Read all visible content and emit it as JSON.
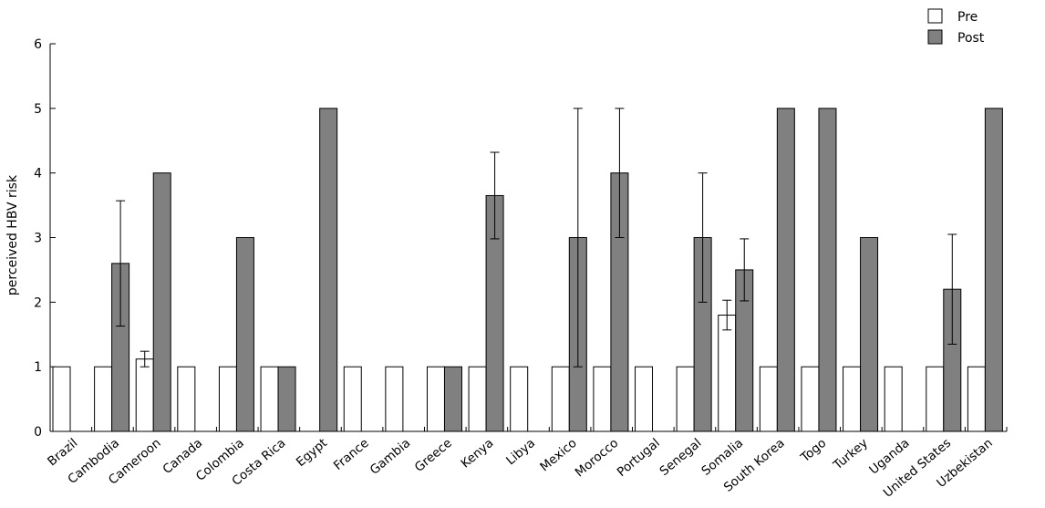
{
  "chart_data": {
    "type": "bar",
    "title": "",
    "xlabel": "",
    "ylabel": "perceived HBV risk",
    "ylim": [
      0,
      6
    ],
    "yticks": [
      0,
      1,
      2,
      3,
      4,
      5,
      6
    ],
    "grid": false,
    "legend_position": "top-right",
    "categories": [
      "Brazil",
      "Cambodia",
      "Cameroon",
      "Canada",
      "Colombia",
      "Costa Rica",
      "Egypt",
      "France",
      "Gambia",
      "Greece",
      "Kenya",
      "Libya",
      "Mexico",
      "Morocco",
      "Portugal",
      "Senegal",
      "Somalia",
      "South Korea",
      "Togo",
      "Turkey",
      "Uganda",
      "United States",
      "Uzbekistan"
    ],
    "series": [
      {
        "name": "Pre",
        "color": "#ffffff",
        "values": [
          1,
          1,
          1.12,
          1,
          1,
          1,
          null,
          1,
          1,
          1,
          1,
          1,
          1,
          1,
          1,
          1,
          1.8,
          1,
          1,
          1,
          1,
          1,
          1
        ],
        "error": [
          null,
          null,
          0.12,
          null,
          null,
          null,
          null,
          null,
          null,
          null,
          null,
          null,
          null,
          null,
          null,
          null,
          0.23,
          null,
          null,
          null,
          null,
          null,
          null
        ]
      },
      {
        "name": "Post",
        "color": "#808080",
        "values": [
          null,
          2.6,
          4,
          null,
          3,
          1,
          5,
          null,
          null,
          1,
          3.65,
          null,
          3,
          4,
          null,
          3,
          2.5,
          5,
          5,
          3,
          null,
          2.2,
          5
        ],
        "error": [
          null,
          0.97,
          null,
          null,
          null,
          null,
          null,
          null,
          null,
          null,
          0.67,
          null,
          2,
          1,
          null,
          1,
          0.48,
          null,
          null,
          null,
          null,
          0.85,
          null
        ]
      }
    ]
  }
}
